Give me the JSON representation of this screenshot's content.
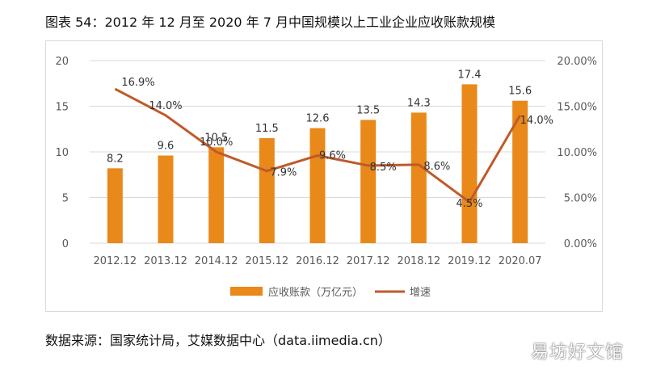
{
  "title": "图表 54：2012 年 12 月至 2020 年 7 月中国规模以上工业企业应收账款规模",
  "source": "数据来源：国家统计局，艾媒数据中心（data.iimedia.cn）",
  "watermark": "易坊好文馆",
  "colors": {
    "bar": "#e8891a",
    "line": "#c0592a",
    "grid": "#d9d9d9",
    "tick_text": "#595959"
  },
  "chart_data": {
    "type": "bar+line",
    "categories": [
      "2012.12",
      "2013.12",
      "2014.12",
      "2015.12",
      "2016.12",
      "2017.12",
      "2018.12",
      "2019.12",
      "2020.07"
    ],
    "series": [
      {
        "name": "应收账款（万亿元）",
        "type": "bar",
        "axis": "left",
        "values": [
          8.2,
          9.6,
          10.5,
          11.5,
          12.6,
          13.5,
          14.3,
          17.4,
          15.6
        ],
        "labels": [
          "8.2",
          "9.6",
          "10.5",
          "11.5",
          "12.6",
          "13.5",
          "14.3",
          "17.4",
          "15.6"
        ]
      },
      {
        "name": "增速",
        "type": "line",
        "axis": "right",
        "values": [
          16.9,
          14.0,
          10.0,
          7.9,
          9.6,
          8.5,
          8.6,
          4.5,
          14.0
        ],
        "labels": [
          "16.9%",
          "14.0%",
          "10.0%",
          "7.9%",
          "9.6%",
          "8.5%",
          "8.6%",
          "4.5%",
          "14.0%"
        ]
      }
    ],
    "y_left": {
      "min": 0,
      "max": 20,
      "ticks": [
        "0",
        "5",
        "10",
        "15",
        "20"
      ]
    },
    "y_right": {
      "min": 0,
      "max": 20,
      "ticks": [
        "0.00%",
        "5.00%",
        "10.00%",
        "15.00%",
        "20.00%"
      ]
    },
    "legend": {
      "position": "bottom",
      "items": [
        "应收账款（万亿元）",
        "增速"
      ]
    },
    "grid": true
  }
}
